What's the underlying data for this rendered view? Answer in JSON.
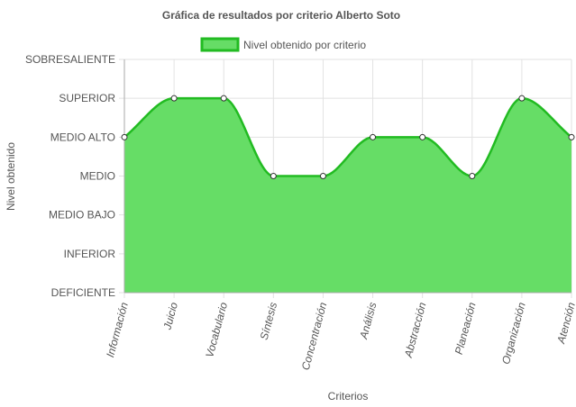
{
  "chart_data": {
    "type": "line",
    "title": "Gráfica de resultados por criterio Alberto Soto",
    "xlabel": "Criterios",
    "ylabel": "Nivel obtenido",
    "legend_position": "top",
    "grid": true,
    "fill": true,
    "smooth": true,
    "y_levels": [
      "DEFICIENTE",
      "INFERIOR",
      "MEDIO BAJO",
      "MEDIO",
      "MEDIO ALTO",
      "SUPERIOR",
      "SOBRESALIENTE"
    ],
    "ylim": [
      0,
      6
    ],
    "categories": [
      "Información",
      "Juicio",
      "Vocabulario",
      "Síntesis",
      "Concentración",
      "Análisis",
      "Abstracción",
      "Planeación",
      "Organización",
      "Atención"
    ],
    "series": [
      {
        "name": "Nivel obtenido por criterio",
        "values": [
          4,
          5,
          5,
          3,
          3,
          4,
          4,
          3,
          5,
          4
        ],
        "fill_color": "#66dd66",
        "line_color": "#22bb22"
      }
    ],
    "colors": {
      "grid": "#e2e2e2",
      "axis": "#aaaaaa",
      "text": "#555555",
      "point_fill": "#ffffff",
      "point_stroke": "#333333"
    }
  }
}
